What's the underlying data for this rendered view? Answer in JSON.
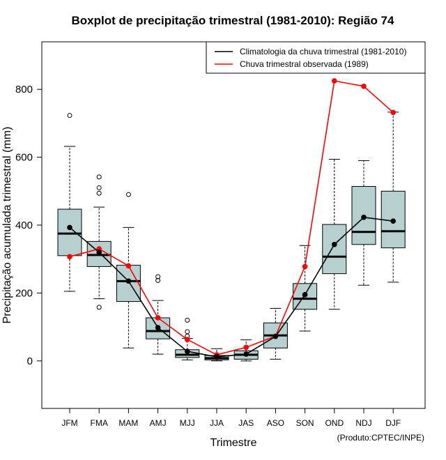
{
  "chart_data": {
    "type": "boxplot",
    "title": "Boxplot de precipitação trimestral (1981-2010): Região 74",
    "xlabel": "Trimestre",
    "ylabel": "Precipitação acumulada trimestral (mm)",
    "credit": "(Produto:CPTEC/INPE)",
    "ylim": [
      -140,
      940
    ],
    "yticks": [
      0,
      200,
      400,
      600,
      800
    ],
    "categories": [
      "JFM",
      "FMA",
      "MAM",
      "AMJ",
      "MJJ",
      "JJA",
      "JAS",
      "ASO",
      "SON",
      "OND",
      "NDJ",
      "DJF"
    ],
    "boxes": [
      {
        "whisker_low": 205,
        "q1": 310,
        "median": 375,
        "q3": 447,
        "whisker_high": 632,
        "outliers": [
          723
        ]
      },
      {
        "whisker_low": 183,
        "q1": 278,
        "median": 312,
        "q3": 352,
        "whisker_high": 453,
        "outliers": [
          158,
          494,
          510,
          542
        ]
      },
      {
        "whisker_low": 38,
        "q1": 175,
        "median": 235,
        "q3": 282,
        "whisker_high": 393,
        "outliers": [
          490
        ]
      },
      {
        "whisker_low": 20,
        "q1": 65,
        "median": 88,
        "q3": 127,
        "whisker_high": 178,
        "outliers": [
          237,
          248
        ]
      },
      {
        "whisker_low": 3,
        "q1": 10,
        "median": 18,
        "q3": 33,
        "whisker_high": 66,
        "outliers": [
          73,
          86,
          120
        ]
      },
      {
        "whisker_low": 0,
        "q1": 3,
        "median": 8,
        "q3": 16,
        "whisker_high": 36,
        "outliers": []
      },
      {
        "whisker_low": 0,
        "q1": 5,
        "median": 18,
        "q3": 30,
        "whisker_high": 62,
        "outliers": []
      },
      {
        "whisker_low": 5,
        "q1": 38,
        "median": 75,
        "q3": 112,
        "whisker_high": 155,
        "outliers": []
      },
      {
        "whisker_low": 88,
        "q1": 152,
        "median": 183,
        "q3": 228,
        "whisker_high": 340,
        "outliers": []
      },
      {
        "whisker_low": 152,
        "q1": 257,
        "median": 307,
        "q3": 402,
        "whisker_high": 594,
        "outliers": []
      },
      {
        "whisker_low": 223,
        "q1": 343,
        "median": 380,
        "q3": 514,
        "whisker_high": 590,
        "outliers": []
      },
      {
        "whisker_low": 232,
        "q1": 333,
        "median": 382,
        "q3": 500,
        "whisker_high": 733,
        "outliers": []
      }
    ],
    "series": [
      {
        "name": "Climatologia da chuva trimestral (1981-2010)",
        "color": "#000000",
        "values": [
          393,
          320,
          235,
          98,
          28,
          12,
          20,
          72,
          195,
          343,
          423,
          412
        ]
      },
      {
        "name": "Chuva trimestral observada (1989)",
        "color": "#ff0000",
        "values": [
          307,
          330,
          280,
          127,
          63,
          18,
          40,
          73,
          278,
          825,
          809,
          732
        ]
      }
    ],
    "box_fill": "#b6cfcf",
    "legend_position": "top-right"
  }
}
